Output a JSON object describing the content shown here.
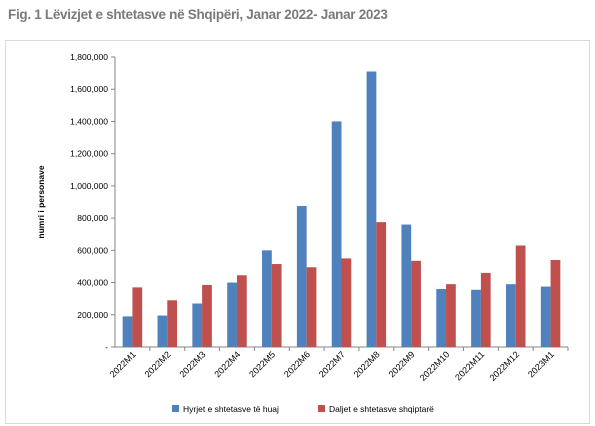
{
  "figure": {
    "title": "Fig. 1 Lëvizjet e shtetasve në Shqipëri, Janar 2022- Janar 2023"
  },
  "chart_data": {
    "type": "bar",
    "title": "Fig. 1 Lëvizjet e shtetasve në Shqipëri, Janar 2022- Janar 2023",
    "xlabel": "",
    "ylabel": "numri i personave",
    "ylim": [
      0,
      1800000
    ],
    "yticks": [
      0,
      200000,
      400000,
      600000,
      800000,
      1000000,
      1200000,
      1400000,
      1600000,
      1800000
    ],
    "ytick_labels": [
      "-",
      "200,000",
      "400,000",
      "600,000",
      "800,000",
      "1,000,000",
      "1,200,000",
      "1,400,000",
      "1,600,000",
      "1,800,000"
    ],
    "categories": [
      "2022M1",
      "2022M2",
      "2022M3",
      "2022M4",
      "2022M5",
      "2022M6",
      "2022M7",
      "2022M8",
      "2022M9",
      "2022M10",
      "2022M11",
      "2022M12",
      "2023M1"
    ],
    "series": [
      {
        "name": "Hyrjet e shtetasve të huaj",
        "color": "#4f81bd",
        "values": [
          190000,
          195000,
          270000,
          400000,
          600000,
          875000,
          1400000,
          1710000,
          760000,
          360000,
          355000,
          390000,
          375000
        ]
      },
      {
        "name": "Daljet e shtetasve shqiptarë",
        "color": "#c0504d",
        "values": [
          370000,
          290000,
          385000,
          445000,
          515000,
          495000,
          550000,
          775000,
          535000,
          390000,
          460000,
          630000,
          540000
        ]
      }
    ],
    "grid": false,
    "legend_position": "bottom"
  }
}
